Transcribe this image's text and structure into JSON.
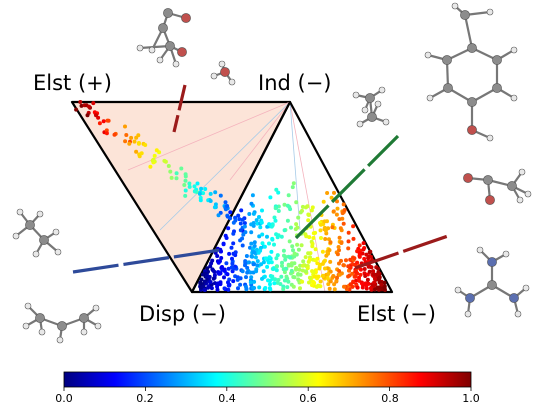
{
  "labels": {
    "top_left": "Elst (+)",
    "top_right": "Ind (−)",
    "bottom_left": "Disp (−)",
    "bottom_right": "Elst (−)"
  },
  "colorbar": {
    "colormap": "jet",
    "ticks": [
      "0.0",
      "0.2",
      "0.4",
      "0.6",
      "0.8",
      "1.0"
    ],
    "range": [
      0.0,
      1.0
    ]
  },
  "colors": {
    "triangle_fill": "#fce4d8",
    "outline": "#000000",
    "carbon": "#8c8c8c",
    "hydrogen": "#e8e8e8",
    "oxygen": "#c0504d",
    "nitrogen": "#5b6fb0",
    "pointer_blue": "#2e4a9a",
    "pointer_green": "#1f7a35",
    "pointer_red": "#9b1b1b"
  },
  "molecules": [
    "acetic-acid",
    "water",
    "p-cresol",
    "ethane-top",
    "acetate",
    "ethane-left",
    "propane",
    "guanidinium"
  ]
}
